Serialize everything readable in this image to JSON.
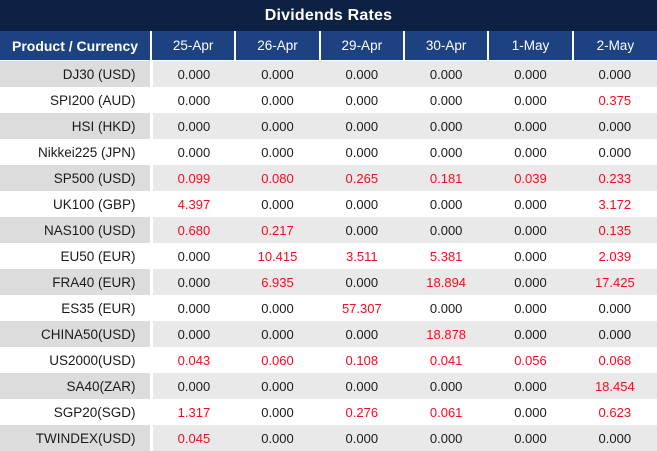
{
  "title": "Dividends Rates",
  "colors": {
    "title_bar": "#0d2145",
    "header_bg": "#1c4282",
    "row_alt": "#e9e9e9",
    "label_alt": "#dcdcdc",
    "value_red": "#fa0a1e",
    "value_black": "#1a1a1a"
  },
  "table": {
    "columns": [
      "Product / Currency",
      "25-Apr",
      "26-Apr",
      "29-Apr",
      "30-Apr",
      "1-May",
      "2-May"
    ],
    "rows": [
      {
        "product": "DJ30 (USD)",
        "values": [
          "0.000",
          "0.000",
          "0.000",
          "0.000",
          "0.000",
          "0.000"
        ],
        "red": [
          false,
          false,
          false,
          false,
          false,
          false
        ]
      },
      {
        "product": "SPI200 (AUD)",
        "values": [
          "0.000",
          "0.000",
          "0.000",
          "0.000",
          "0.000",
          "0.375"
        ],
        "red": [
          false,
          false,
          false,
          false,
          false,
          true
        ]
      },
      {
        "product": "HSI (HKD)",
        "values": [
          "0.000",
          "0.000",
          "0.000",
          "0.000",
          "0.000",
          "0.000"
        ],
        "red": [
          false,
          false,
          false,
          false,
          false,
          false
        ]
      },
      {
        "product": "Nikkei225 (JPN)",
        "values": [
          "0.000",
          "0.000",
          "0.000",
          "0.000",
          "0.000",
          "0.000"
        ],
        "red": [
          false,
          false,
          false,
          false,
          false,
          false
        ]
      },
      {
        "product": "SP500 (USD)",
        "values": [
          "0.099",
          "0.080",
          "0.265",
          "0.181",
          "0.039",
          "0.233"
        ],
        "red": [
          true,
          true,
          true,
          true,
          true,
          true
        ]
      },
      {
        "product": "UK100 (GBP)",
        "values": [
          "4.397",
          "0.000",
          "0.000",
          "0.000",
          "0.000",
          "3.172"
        ],
        "red": [
          true,
          false,
          false,
          false,
          false,
          true
        ]
      },
      {
        "product": "NAS100 (USD)",
        "values": [
          "0.680",
          "0.217",
          "0.000",
          "0.000",
          "0.000",
          "0.135"
        ],
        "red": [
          true,
          true,
          false,
          false,
          false,
          true
        ]
      },
      {
        "product": "EU50 (EUR)",
        "values": [
          "0.000",
          "10.415",
          "3.511",
          "5.381",
          "0.000",
          "2.039"
        ],
        "red": [
          false,
          true,
          true,
          true,
          false,
          true
        ]
      },
      {
        "product": "FRA40 (EUR)",
        "values": [
          "0.000",
          "6.935",
          "0.000",
          "18.894",
          "0.000",
          "17.425"
        ],
        "red": [
          false,
          true,
          false,
          true,
          false,
          true
        ]
      },
      {
        "product": "ES35 (EUR)",
        "values": [
          "0.000",
          "0.000",
          "57.307",
          "0.000",
          "0.000",
          "0.000"
        ],
        "red": [
          false,
          false,
          true,
          false,
          false,
          false
        ]
      },
      {
        "product": "CHINA50(USD)",
        "values": [
          "0.000",
          "0.000",
          "0.000",
          "18.878",
          "0.000",
          "0.000"
        ],
        "red": [
          false,
          false,
          false,
          true,
          false,
          false
        ]
      },
      {
        "product": "US2000(USD)",
        "values": [
          "0.043",
          "0.060",
          "0.108",
          "0.041",
          "0.056",
          "0.068"
        ],
        "red": [
          true,
          true,
          true,
          true,
          true,
          true
        ]
      },
      {
        "product": "SA40(ZAR)",
        "values": [
          "0.000",
          "0.000",
          "0.000",
          "0.000",
          "0.000",
          "18.454"
        ],
        "red": [
          false,
          false,
          false,
          false,
          false,
          true
        ]
      },
      {
        "product": "SGP20(SGD)",
        "values": [
          "1.317",
          "0.000",
          "0.276",
          "0.061",
          "0.000",
          "0.623"
        ],
        "red": [
          true,
          false,
          true,
          true,
          false,
          true
        ]
      },
      {
        "product": "TWINDEX(USD)",
        "values": [
          "0.045",
          "0.000",
          "0.000",
          "0.000",
          "0.000",
          "0.000"
        ],
        "red": [
          true,
          false,
          false,
          false,
          false,
          false
        ]
      }
    ]
  }
}
